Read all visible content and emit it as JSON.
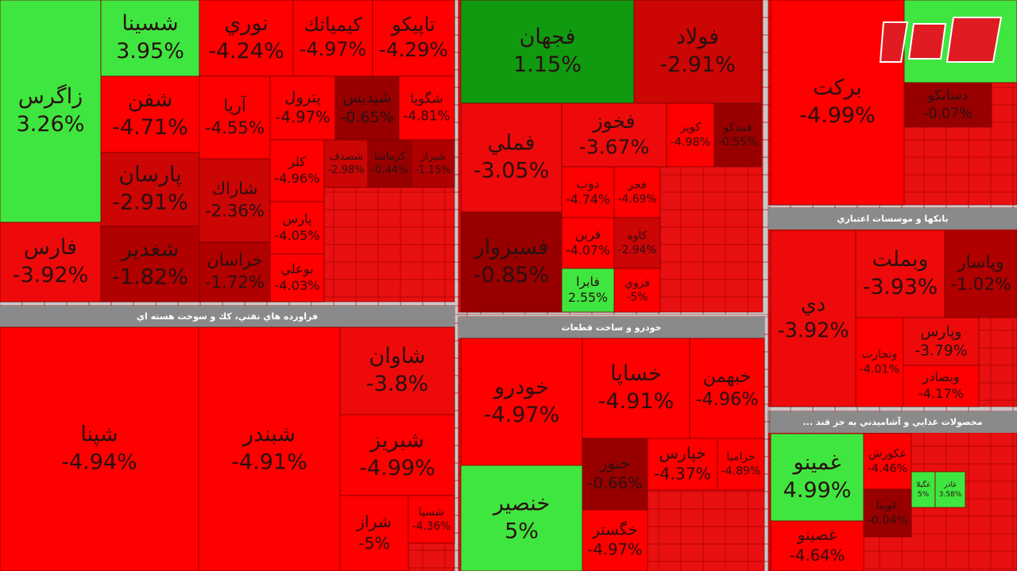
{
  "chart_data": {
    "type": "treemap",
    "groups": [
      {
        "categories": [
          "زاگرس",
          "شسينا",
          "فارس",
          "شفن",
          "پارسان",
          "شغدير",
          "نوري",
          "كيمياتك",
          "تاپيكو",
          "آريا",
          "شاراك",
          "خراسان",
          "پترول",
          "شپديس",
          "شگويا",
          "كلر",
          "پارس",
          "بوعلي",
          "شصدف",
          "كرماشا",
          "شيراز"
        ],
        "values": [
          3.26,
          3.95,
          -3.92,
          -4.71,
          -2.91,
          -1.82,
          -4.24,
          -4.97,
          -4.29,
          -4.55,
          -2.36,
          -1.72,
          -4.97,
          -0.65,
          -4.81,
          -4.96,
          -4.05,
          -4.03,
          -2.98,
          -0.44,
          -1.15
        ],
        "value_labels": [
          "3.26%",
          "3.95%",
          "-3.92%",
          "-4.71%",
          "-2.91%",
          "-1.82%",
          "-4.24%",
          "-4.97%",
          "-4.29%",
          "-4.55%",
          "-2.36%",
          "-1.72%",
          "-4.97%",
          "-0.65%",
          "-4.81%",
          "-4.96%",
          "-4.05%",
          "-4.03%",
          "-2.98%",
          "-0.44%",
          "-1.15%"
        ]
      },
      {
        "categories": [
          "فجهان",
          "فولاد",
          "فملي",
          "فسبزوار",
          "فخوز",
          "كوير",
          "فمدكو",
          "دوب",
          "فجر",
          "فرين",
          "كاوه",
          "فابرا",
          "فروي"
        ],
        "values": [
          1.15,
          -2.91,
          -3.05,
          -0.85,
          -3.67,
          -4.98,
          -0.55,
          -4.74,
          -4.69,
          -4.07,
          -2.94,
          2.55,
          -5
        ],
        "value_labels": [
          "1.15%",
          "-2.91%",
          "-3.05%",
          "-0.85%",
          "-3.67%",
          "-4.98%",
          "-0.55%",
          "-4.74%",
          "-4.69%",
          "-4.07%",
          "-2.94%",
          "2.55%",
          "-5%"
        ]
      },
      {
        "categories": [
          "بركت",
          "دسانكو"
        ],
        "values": [
          -4.99,
          -0.07
        ],
        "value_labels": [
          "-4.99%",
          "-0.07%"
        ]
      },
      {
        "title": "بانکها و موسسات اعتباري",
        "categories": [
          "دي",
          "وبملت",
          "وپاسار",
          "وتجارت",
          "وپارس",
          "وبصادر"
        ],
        "values": [
          -3.92,
          -3.93,
          -1.02,
          -4.01,
          -3.79,
          -4.17
        ],
        "value_labels": [
          "-3.92%",
          "-3.93%",
          "-1.02%",
          "-4.01%",
          "-3.79%",
          "-4.17%"
        ]
      },
      {
        "title": "... محصولات غذايي و آشاميدني به جز قند",
        "categories": [
          "غمينو",
          "غصينو",
          "عكورش",
          "غگيلا",
          "غاذر",
          "عوبيا"
        ],
        "values": [
          4.99,
          -4.64,
          -4.46,
          5,
          3.58,
          -0.04
        ],
        "value_labels": [
          "4.99%",
          "-4.64%",
          "-4.46%",
          "5%",
          "3.58%",
          "-0.04%"
        ]
      },
      {
        "title": "فراورده هاي نفتي، كك و سوخت هسته اي",
        "categories": [
          "شپنا",
          "شبندر",
          "شاوان",
          "شبريز",
          "شراز",
          "شسپا"
        ],
        "values": [
          -4.94,
          -4.91,
          -3.8,
          -4.99,
          -5,
          -4.36
        ],
        "value_labels": [
          "-4.94%",
          "-4.91%",
          "-3.8%",
          "-4.99%",
          "-5%",
          "-4.36%"
        ]
      },
      {
        "title": "خودرو و ساخت قطعات",
        "categories": [
          "خودرو",
          "خنصير",
          "خساپا",
          "خبهمن",
          "ختور",
          "خگستر",
          "خپارس",
          "خزاميا"
        ],
        "values": [
          -4.97,
          5,
          -4.91,
          -4.96,
          -0.66,
          -4.97,
          -4.37,
          -4.89
        ],
        "value_labels": [
          "-4.97%",
          "5%",
          "-4.91%",
          "-4.96%",
          "-0.66%",
          "-4.97%",
          "-4.37%",
          "-4.89%"
        ]
      }
    ]
  }
}
